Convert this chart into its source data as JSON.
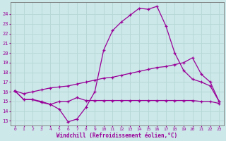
{
  "bg_color": "#cce8e8",
  "grid_color": "#aacccc",
  "line_color": "#990099",
  "xlabel": "Windchill (Refroidissement éolien,°C)",
  "xlabel_color": "#990099",
  "tick_color": "#990099",
  "xlim": [
    -0.5,
    23.5
  ],
  "ylim": [
    12.5,
    25.2
  ],
  "yticks": [
    13,
    14,
    15,
    16,
    17,
    18,
    19,
    20,
    21,
    22,
    23,
    24
  ],
  "xticks": [
    0,
    1,
    2,
    3,
    4,
    5,
    6,
    7,
    8,
    9,
    10,
    11,
    12,
    13,
    14,
    15,
    16,
    17,
    18,
    19,
    20,
    21,
    22,
    23
  ],
  "line1_x": [
    0,
    1,
    2,
    3,
    4,
    5,
    6,
    7,
    8,
    9,
    10,
    11,
    12,
    13,
    14,
    15,
    16,
    17,
    18,
    19,
    20,
    21,
    22,
    23
  ],
  "line1_y": [
    16.1,
    15.2,
    15.2,
    15.0,
    14.7,
    14.2,
    12.9,
    13.2,
    14.4,
    16.0,
    20.3,
    22.3,
    23.2,
    23.9,
    24.6,
    24.5,
    24.8,
    22.8,
    20.0,
    18.2,
    17.3,
    17.0,
    16.6,
    15.0
  ],
  "line2_x": [
    0,
    1,
    2,
    3,
    4,
    5,
    6,
    7,
    8,
    9,
    10,
    11,
    12,
    13,
    14,
    15,
    16,
    17,
    18,
    19,
    20,
    21,
    22,
    23
  ],
  "line2_y": [
    16.1,
    15.8,
    16.0,
    16.2,
    16.4,
    16.5,
    16.6,
    16.8,
    17.0,
    17.2,
    17.4,
    17.5,
    17.7,
    17.9,
    18.1,
    18.3,
    18.5,
    18.6,
    18.8,
    19.0,
    19.5,
    17.8,
    17.0,
    15.0
  ],
  "line3_x": [
    0,
    1,
    2,
    3,
    4,
    5,
    6,
    7,
    8,
    9,
    10,
    11,
    12,
    13,
    14,
    15,
    16,
    17,
    18,
    19,
    20,
    21,
    22,
    23
  ],
  "line3_y": [
    16.1,
    15.2,
    15.2,
    14.9,
    14.7,
    15.0,
    15.0,
    15.4,
    15.1,
    15.1,
    15.1,
    15.1,
    15.1,
    15.1,
    15.1,
    15.1,
    15.1,
    15.1,
    15.1,
    15.1,
    15.1,
    15.0,
    15.0,
    14.8
  ]
}
